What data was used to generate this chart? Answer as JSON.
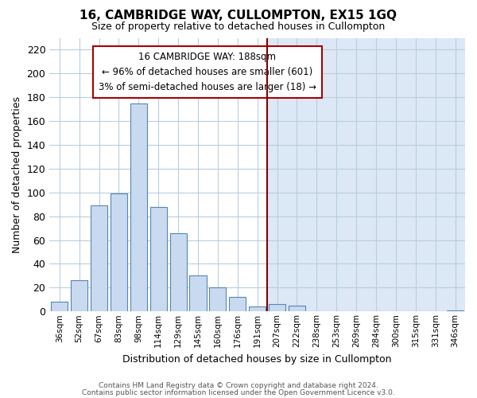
{
  "title": "16, CAMBRIDGE WAY, CULLOMPTON, EX15 1GQ",
  "subtitle": "Size of property relative to detached houses in Cullompton",
  "xlabel": "Distribution of detached houses by size in Cullompton",
  "ylabel": "Number of detached properties",
  "bar_labels": [
    "36sqm",
    "52sqm",
    "67sqm",
    "83sqm",
    "98sqm",
    "114sqm",
    "129sqm",
    "145sqm",
    "160sqm",
    "176sqm",
    "191sqm",
    "207sqm",
    "222sqm",
    "238sqm",
    "253sqm",
    "269sqm",
    "284sqm",
    "300sqm",
    "315sqm",
    "331sqm",
    "346sqm"
  ],
  "bar_values": [
    8,
    26,
    89,
    99,
    175,
    88,
    66,
    30,
    20,
    12,
    4,
    6,
    5,
    0,
    0,
    0,
    0,
    0,
    0,
    0,
    1
  ],
  "bar_color": "#c9daf0",
  "bar_edge_color": "#5585b5",
  "vline_x_index": 10,
  "vline_color": "#800000",
  "annotation_text_line1": "16 CAMBRIDGE WAY: 188sqm",
  "annotation_text_line2": "← 96% of detached houses are smaller (601)",
  "annotation_text_line3": "3% of semi-detached houses are larger (18) →",
  "annotation_box_color": "#ffffff",
  "annotation_box_edge_color": "#aa0000",
  "ylim": [
    0,
    230
  ],
  "yticks": [
    0,
    20,
    40,
    60,
    80,
    100,
    120,
    140,
    160,
    180,
    200,
    220
  ],
  "footnote1": "Contains HM Land Registry data © Crown copyright and database right 2024.",
  "footnote2": "Contains public sector information licensed under the Open Government Licence v3.0.",
  "bg_color": "#ffffff",
  "plot_bg_left": "#ffffff",
  "plot_bg_right": "#dce8f5",
  "grid_color": "#b8cede",
  "title_fontsize": 11,
  "subtitle_fontsize": 9
}
